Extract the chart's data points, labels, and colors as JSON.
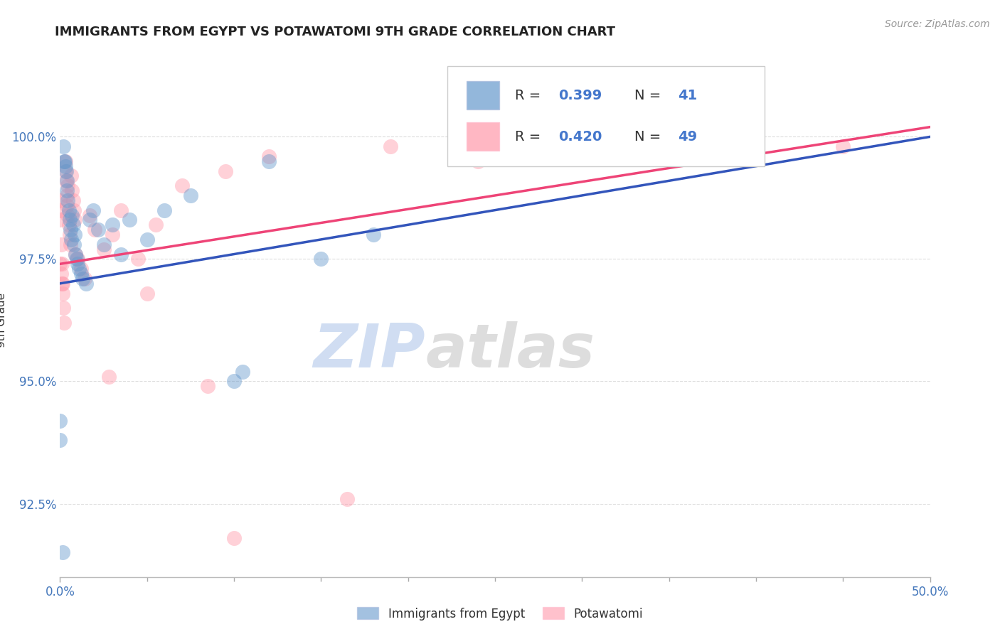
{
  "title": "IMMIGRANTS FROM EGYPT VS POTAWATOMI 9TH GRADE CORRELATION CHART",
  "source_text": "Source: ZipAtlas.com",
  "ylabel": "9th Grade",
  "xlim": [
    0.0,
    50.0
  ],
  "ylim": [
    91.0,
    101.5
  ],
  "x_ticks": [
    0.0,
    50.0
  ],
  "x_tick_labels": [
    "0.0%",
    "50.0%"
  ],
  "y_ticks": [
    92.5,
    95.0,
    97.5,
    100.0
  ],
  "y_tick_labels": [
    "92.5%",
    "95.0%",
    "97.5%",
    "100.0%"
  ],
  "blue_color": "#6699CC",
  "pink_color": "#FF99AA",
  "blue_line_color": "#3355BB",
  "pink_line_color": "#EE4477",
  "blue_label": "Immigrants from Egypt",
  "pink_label": "Potawatomi",
  "watermark_zip": "ZIP",
  "watermark_atlas": "atlas",
  "background_color": "#FFFFFF",
  "grid_color": "#DDDDDD",
  "blue_points": [
    [
      0.18,
      99.8
    ],
    [
      0.25,
      99.5
    ],
    [
      0.28,
      99.5
    ],
    [
      0.32,
      99.4
    ],
    [
      0.35,
      99.3
    ],
    [
      0.38,
      99.1
    ],
    [
      0.4,
      98.9
    ],
    [
      0.45,
      98.7
    ],
    [
      0.5,
      98.5
    ],
    [
      0.55,
      98.3
    ],
    [
      0.6,
      98.1
    ],
    [
      0.65,
      97.9
    ],
    [
      0.7,
      98.4
    ],
    [
      0.75,
      98.2
    ],
    [
      0.8,
      97.8
    ],
    [
      0.85,
      98.0
    ],
    [
      0.9,
      97.6
    ],
    [
      0.95,
      97.5
    ],
    [
      1.0,
      97.4
    ],
    [
      1.1,
      97.3
    ],
    [
      1.2,
      97.2
    ],
    [
      1.3,
      97.1
    ],
    [
      1.5,
      97.0
    ],
    [
      1.7,
      98.3
    ],
    [
      1.9,
      98.5
    ],
    [
      2.2,
      98.1
    ],
    [
      2.5,
      97.8
    ],
    [
      3.0,
      98.2
    ],
    [
      3.5,
      97.6
    ],
    [
      4.0,
      98.3
    ],
    [
      5.0,
      97.9
    ],
    [
      6.0,
      98.5
    ],
    [
      7.5,
      98.8
    ],
    [
      10.0,
      95.0
    ],
    [
      10.5,
      95.2
    ],
    [
      12.0,
      99.5
    ],
    [
      15.0,
      97.5
    ],
    [
      18.0,
      98.0
    ],
    [
      0.0,
      94.2
    ],
    [
      0.0,
      93.8
    ],
    [
      0.15,
      91.5
    ]
  ],
  "pink_points": [
    [
      0.0,
      97.4
    ],
    [
      0.05,
      97.2
    ],
    [
      0.1,
      97.0
    ],
    [
      0.15,
      96.8
    ],
    [
      0.2,
      96.5
    ],
    [
      0.25,
      96.2
    ],
    [
      0.3,
      99.5
    ],
    [
      0.32,
      99.3
    ],
    [
      0.35,
      99.1
    ],
    [
      0.38,
      98.8
    ],
    [
      0.4,
      98.6
    ],
    [
      0.42,
      99.0
    ],
    [
      0.45,
      98.4
    ],
    [
      0.5,
      98.2
    ],
    [
      0.55,
      98.0
    ],
    [
      0.6,
      97.8
    ],
    [
      0.65,
      99.2
    ],
    [
      0.7,
      98.9
    ],
    [
      0.75,
      98.7
    ],
    [
      0.8,
      98.5
    ],
    [
      0.85,
      98.3
    ],
    [
      0.9,
      97.6
    ],
    [
      1.0,
      97.5
    ],
    [
      1.2,
      97.3
    ],
    [
      1.4,
      97.1
    ],
    [
      1.7,
      98.4
    ],
    [
      2.0,
      98.1
    ],
    [
      2.5,
      97.7
    ],
    [
      3.0,
      98.0
    ],
    [
      3.5,
      98.5
    ],
    [
      4.5,
      97.5
    ],
    [
      5.5,
      98.2
    ],
    [
      7.0,
      99.0
    ],
    [
      9.5,
      99.3
    ],
    [
      12.0,
      99.6
    ],
    [
      2.8,
      95.1
    ],
    [
      5.0,
      96.8
    ],
    [
      8.5,
      94.9
    ],
    [
      16.5,
      92.6
    ],
    [
      10.0,
      91.8
    ],
    [
      0.0,
      98.7
    ],
    [
      0.0,
      98.5
    ],
    [
      0.0,
      98.3
    ],
    [
      0.05,
      97.8
    ],
    [
      0.1,
      97.4
    ],
    [
      0.15,
      97.0
    ],
    [
      19.0,
      99.8
    ],
    [
      24.0,
      99.5
    ],
    [
      45.0,
      99.8
    ]
  ],
  "blue_line_x": [
    0.0,
    50.0
  ],
  "blue_line_y": [
    97.0,
    100.0
  ],
  "pink_line_x": [
    0.0,
    50.0
  ],
  "pink_line_y": [
    97.4,
    100.2
  ]
}
